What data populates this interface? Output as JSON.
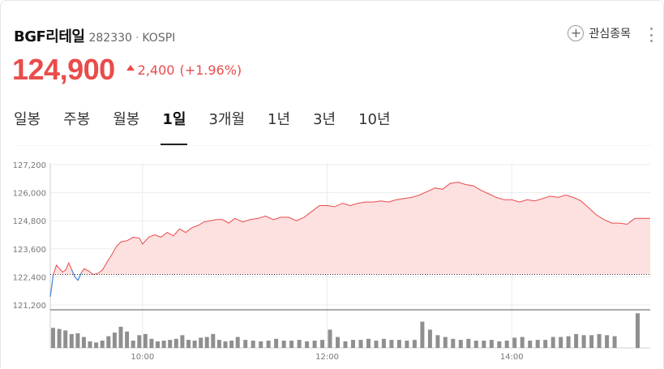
{
  "stock": {
    "name": "BGF리테일",
    "code": "282330",
    "separator": "·",
    "market": "KOSPI",
    "price": "124,900",
    "change": "2,400",
    "change_pct": "(+1.96%)",
    "direction": "up"
  },
  "watchlist": {
    "label": "관심종목",
    "icon": "plus-circle-icon"
  },
  "more_icon": "more-vertical-icon",
  "tabs": [
    {
      "label": "일봉",
      "active": false
    },
    {
      "label": "주봉",
      "active": false
    },
    {
      "label": "월봉",
      "active": false
    },
    {
      "label": "1일",
      "active": true
    },
    {
      "label": "3개월",
      "active": false
    },
    {
      "label": "1년",
      "active": false
    },
    {
      "label": "3년",
      "active": false
    },
    {
      "label": "10년",
      "active": false
    }
  ],
  "colors": {
    "up": "#ea4b4b",
    "up_fill": "#fde0e0",
    "down_line": "#3d8ee6",
    "volume": "#8f8f8f",
    "grid": "#ececec",
    "baseline": "#333333"
  },
  "chart_data": {
    "type": "area",
    "title": "",
    "xlabel": "",
    "ylabel": "",
    "y_ticks": [
      "127,200",
      "126,000",
      "124,800",
      "123,600",
      "122,400",
      "121,200"
    ],
    "y_tick_values": [
      127200,
      126000,
      124800,
      123600,
      122400,
      121200
    ],
    "ylim": [
      121200,
      127200
    ],
    "x_ticks": [
      "10:00",
      "12:00",
      "14:00"
    ],
    "x_tick_values": [
      "10:00",
      "12:00",
      "14:00"
    ],
    "xlim": [
      "09:00",
      "15:30"
    ],
    "previous_close": 122500,
    "grid": true,
    "series": [
      {
        "x": [
          "09:00",
          "09:02",
          "09:04",
          "09:06",
          "09:08",
          "09:10",
          "09:12",
          "09:14",
          "09:16",
          "09:18",
          "09:20",
          "09:22",
          "09:25",
          "09:28",
          "09:31",
          "09:34",
          "09:37",
          "09:40",
          "09:43",
          "09:46",
          "09:50",
          "09:54",
          "09:58",
          "10:00",
          "10:04",
          "10:08",
          "10:12",
          "10:16",
          "10:20",
          "10:24",
          "10:28",
          "10:32",
          "10:36",
          "10:40",
          "10:44",
          "10:48",
          "10:52",
          "10:56",
          "11:00",
          "11:05",
          "11:10",
          "11:15",
          "11:20",
          "11:25",
          "11:30",
          "11:35",
          "11:40",
          "11:45",
          "11:50",
          "11:55",
          "12:00",
          "12:05",
          "12:10",
          "12:15",
          "12:20",
          "12:25",
          "12:30",
          "12:35",
          "12:40",
          "12:45",
          "12:50",
          "12:55",
          "13:00",
          "13:05",
          "13:10",
          "13:15",
          "13:20",
          "13:25",
          "13:30",
          "13:35",
          "13:40",
          "13:45",
          "13:50",
          "13:55",
          "14:00",
          "14:05",
          "14:10",
          "14:15",
          "14:20",
          "14:25",
          "14:30",
          "14:35",
          "14:40",
          "14:45",
          "14:50",
          "14:55",
          "15:00",
          "15:05",
          "15:10",
          "15:15",
          "15:20",
          "15:30"
        ],
        "y": [
          121550,
          122500,
          122900,
          122750,
          122600,
          122700,
          123000,
          122700,
          122400,
          122250,
          122550,
          122750,
          122650,
          122500,
          122550,
          122700,
          123050,
          123350,
          123700,
          123900,
          123950,
          124100,
          124050,
          123800,
          124100,
          124200,
          124100,
          124300,
          124150,
          124450,
          124300,
          124500,
          124600,
          124750,
          124800,
          124850,
          124850,
          124700,
          124900,
          124750,
          124850,
          124900,
          125000,
          124850,
          124950,
          124950,
          124800,
          124950,
          125200,
          125450,
          125450,
          125400,
          125550,
          125450,
          125550,
          125600,
          125600,
          125650,
          125600,
          125700,
          125750,
          125800,
          125900,
          126050,
          126200,
          126150,
          126400,
          126450,
          126350,
          126300,
          126100,
          125950,
          125800,
          125700,
          125700,
          125600,
          125700,
          125650,
          125750,
          125850,
          125800,
          125900,
          125800,
          125650,
          125350,
          125050,
          124850,
          124700,
          124700,
          124650,
          124900,
          124900
        ]
      }
    ],
    "volume": {
      "x": [
        "09:00",
        "09:04",
        "09:08",
        "09:12",
        "09:16",
        "09:20",
        "09:24",
        "09:28",
        "09:32",
        "09:36",
        "09:40",
        "09:44",
        "09:48",
        "09:52",
        "09:56",
        "10:00",
        "10:04",
        "10:08",
        "10:12",
        "10:16",
        "10:20",
        "10:24",
        "10:28",
        "10:32",
        "10:36",
        "10:40",
        "10:44",
        "10:48",
        "10:52",
        "10:56",
        "11:00",
        "11:05",
        "11:10",
        "11:15",
        "11:20",
        "11:25",
        "11:30",
        "11:35",
        "11:40",
        "11:45",
        "11:50",
        "11:55",
        "12:00",
        "12:05",
        "12:10",
        "12:15",
        "12:20",
        "12:25",
        "12:30",
        "12:35",
        "12:40",
        "12:45",
        "12:50",
        "12:55",
        "13:00",
        "13:05",
        "13:10",
        "13:15",
        "13:20",
        "13:25",
        "13:30",
        "13:35",
        "13:40",
        "13:45",
        "13:50",
        "13:55",
        "14:00",
        "14:05",
        "14:10",
        "14:15",
        "14:20",
        "14:25",
        "14:30",
        "14:35",
        "14:40",
        "14:45",
        "14:50",
        "14:55",
        "15:00",
        "15:05",
        "15:10",
        "15:15",
        "15:20",
        "15:25",
        "15:30"
      ],
      "relative": [
        0.55,
        0.52,
        0.48,
        0.38,
        0.4,
        0.3,
        0.18,
        0.15,
        0.2,
        0.32,
        0.42,
        0.58,
        0.45,
        0.2,
        0.35,
        0.38,
        0.25,
        0.18,
        0.2,
        0.22,
        0.25,
        0.35,
        0.22,
        0.2,
        0.28,
        0.3,
        0.38,
        0.22,
        0.18,
        0.2,
        0.3,
        0.22,
        0.2,
        0.18,
        0.2,
        0.25,
        0.2,
        0.2,
        0.22,
        0.18,
        0.2,
        0.22,
        0.5,
        0.3,
        0.18,
        0.22,
        0.22,
        0.25,
        0.2,
        0.25,
        0.22,
        0.22,
        0.2,
        0.22,
        0.72,
        0.5,
        0.35,
        0.3,
        0.25,
        0.22,
        0.25,
        0.2,
        0.2,
        0.22,
        0.18,
        0.2,
        0.28,
        0.3,
        0.2,
        0.22,
        0.22,
        0.3,
        0.3,
        0.32,
        0.38,
        0.35,
        0.35,
        0.38,
        0.35,
        0.32,
        0.0,
        0.0,
        0.95,
        0.0,
        0.0
      ]
    }
  }
}
